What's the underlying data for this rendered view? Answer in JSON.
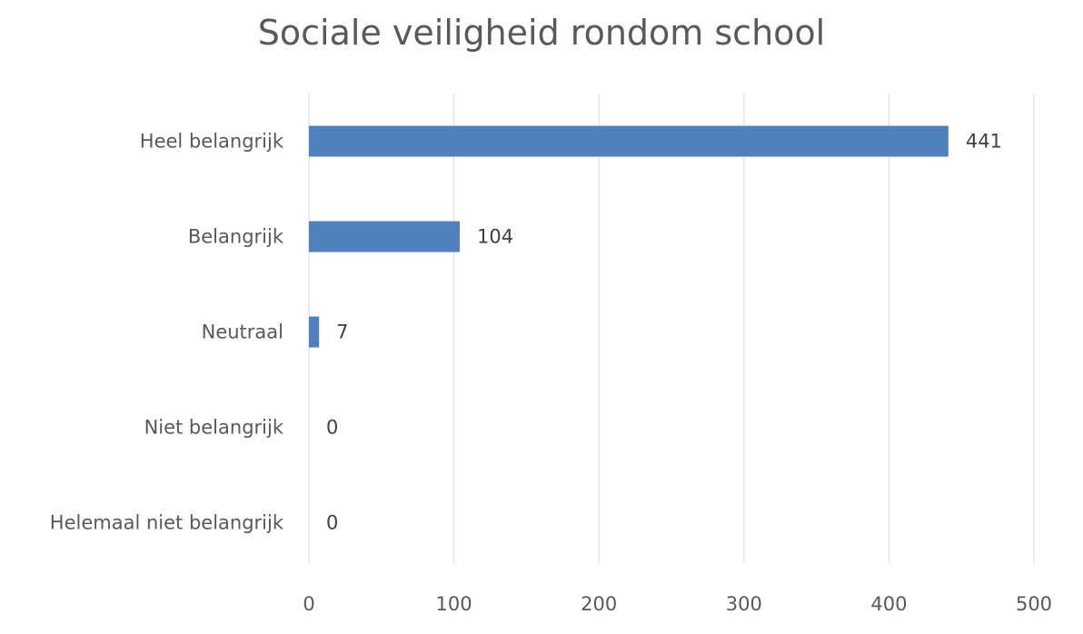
{
  "chart_data": {
    "type": "bar",
    "orientation": "horizontal",
    "title": "Sociale veiligheid rondom school",
    "categories": [
      "Heel belangrijk",
      "Belangrijk",
      "Neutraal",
      "Niet belangrijk",
      "Helemaal niet belangrijk"
    ],
    "values": [
      441,
      104,
      7,
      0,
      0
    ],
    "xlabel": "",
    "ylabel": "",
    "xlim": [
      0,
      500
    ],
    "xticks": [
      0,
      100,
      200,
      300,
      400,
      500
    ],
    "grid": true,
    "data_labels": true,
    "bar_color": "#4F81BD",
    "legend": "none"
  }
}
